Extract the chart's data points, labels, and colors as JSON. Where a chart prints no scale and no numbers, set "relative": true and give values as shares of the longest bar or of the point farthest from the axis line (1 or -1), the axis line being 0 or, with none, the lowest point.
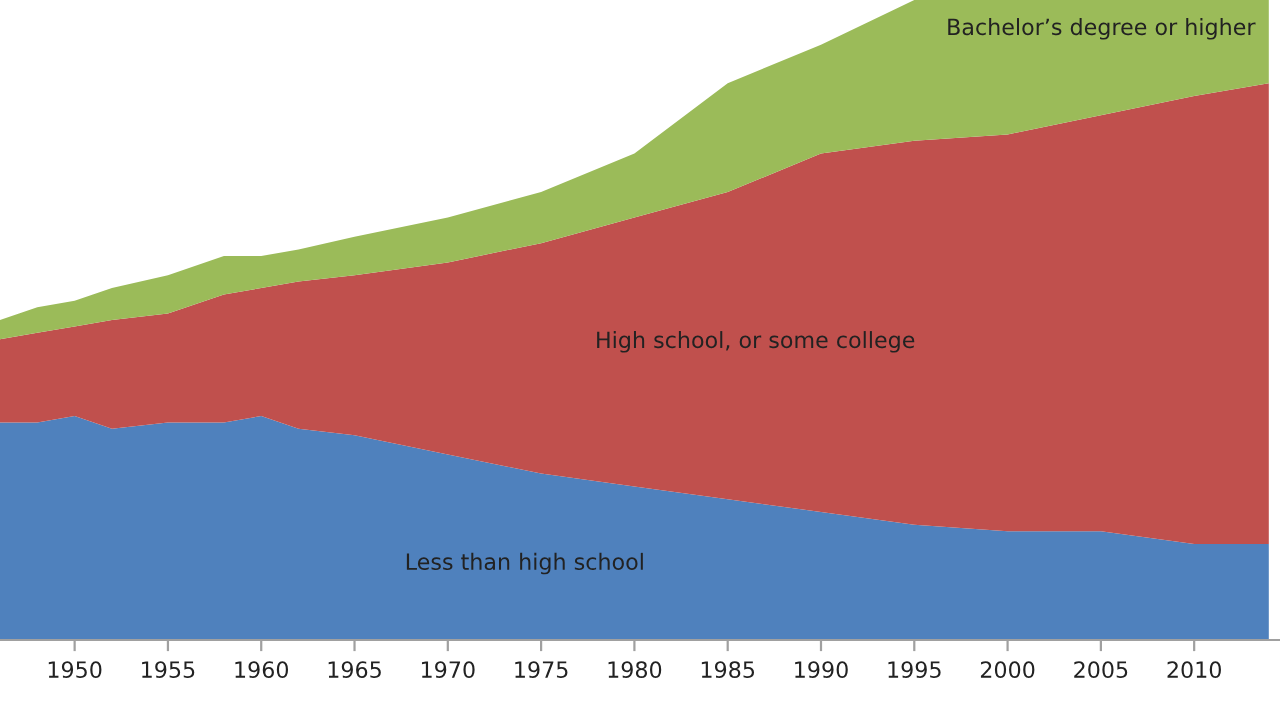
{
  "chart_data": {
    "type": "area",
    "stacked": true,
    "relative": true,
    "grid": false,
    "legend": false,
    "x": [
      1946,
      1948,
      1950,
      1952,
      1955,
      1958,
      1960,
      1962,
      1965,
      1970,
      1975,
      1980,
      1985,
      1990,
      1995,
      2000,
      2005,
      2010,
      2014
    ],
    "xlim": [
      1946,
      2014.6
    ],
    "xticks": [
      1950,
      1955,
      1960,
      1965,
      1970,
      1975,
      1980,
      1985,
      1990,
      1995,
      2000,
      2005,
      2010
    ],
    "series": [
      {
        "name": "Less than high school",
        "color": "#4f81bd",
        "values": [
          0.34,
          0.34,
          0.35,
          0.33,
          0.34,
          0.34,
          0.35,
          0.33,
          0.32,
          0.29,
          0.26,
          0.24,
          0.22,
          0.2,
          0.18,
          0.17,
          0.17,
          0.15,
          0.15
        ]
      },
      {
        "name": "High school, or some college",
        "color": "#c0504d",
        "values": [
          0.13,
          0.14,
          0.14,
          0.17,
          0.17,
          0.2,
          0.2,
          0.23,
          0.25,
          0.3,
          0.36,
          0.42,
          0.48,
          0.56,
          0.6,
          0.62,
          0.65,
          0.7,
          0.72
        ]
      },
      {
        "name": "Bachelor’s degree or higher",
        "color": "#9bbb59",
        "values": [
          0.03,
          0.04,
          0.04,
          0.05,
          0.06,
          0.06,
          0.05,
          0.05,
          0.06,
          0.07,
          0.08,
          0.1,
          0.17,
          0.17,
          0.22,
          0.21,
          0.18,
          0.15,
          0.13
        ]
      }
    ]
  }
}
